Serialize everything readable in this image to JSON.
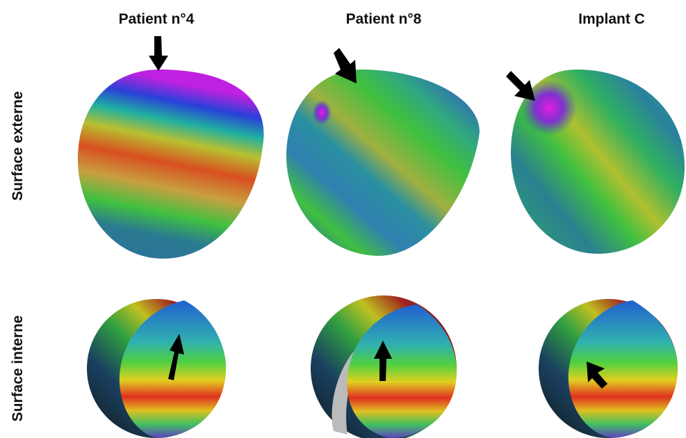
{
  "columns": [
    "Patient n°4",
    "Patient n°8",
    "Implant C"
  ],
  "rows": [
    "Surface externe",
    "Surface interne"
  ]
}
